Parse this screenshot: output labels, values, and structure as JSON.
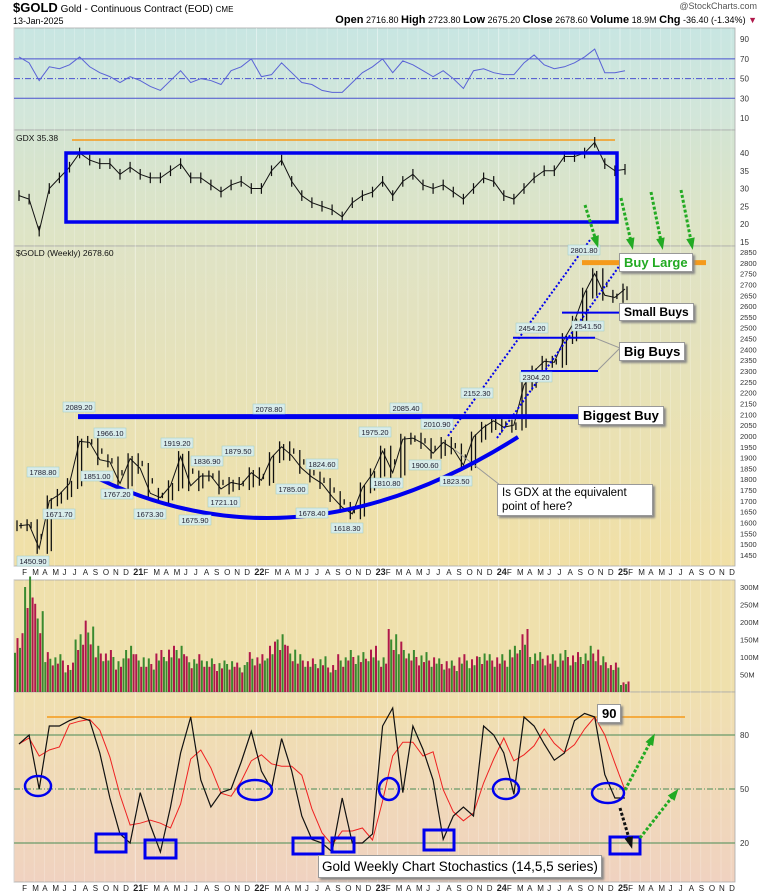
{
  "header": {
    "symbol": "$GOLD",
    "description": "Gold - Continuous Contract (EOD)",
    "exchange": "CME",
    "date": "13-Jan-2025",
    "credit": "@StockCharts.com",
    "open_label": "Open",
    "open": "2716.80",
    "high_label": "High",
    "high": "2723.80",
    "low_label": "Low",
    "low": "2675.20",
    "close_label": "Close",
    "close": "2678.60",
    "volume_label": "Volume",
    "volume": "18.9M",
    "chg_label": "Chg",
    "chg": "-36.40 (-1.34%)",
    "chg_icon": "down-triangle-icon"
  },
  "colors": {
    "up": "#3a8a2e",
    "down": "#b0184a",
    "annotation_blue": "#0000ee",
    "orange": "#f59a1b",
    "arrow_green": "#22aa22",
    "rsi_line": "#5a63d6"
  },
  "chart_data": [
    {
      "type": "line",
      "panel": "RSI",
      "yticks": [
        90,
        70,
        50,
        30,
        10
      ],
      "ylim": [
        0,
        100
      ],
      "levels": [
        70,
        50,
        30
      ],
      "months": [
        "2020-01",
        "2020-02",
        "2020-03",
        "2020-04",
        "2020-05",
        "2020-06",
        "2020-07",
        "2020-08",
        "2020-09",
        "2020-10",
        "2020-11",
        "2020-12",
        "2021-01",
        "2021-02",
        "2021-03",
        "2021-04",
        "2021-05",
        "2021-06",
        "2021-07",
        "2021-08",
        "2021-09",
        "2021-10",
        "2021-11",
        "2021-12",
        "2022-01",
        "2022-02",
        "2022-03",
        "2022-04",
        "2022-05",
        "2022-06",
        "2022-07",
        "2022-08",
        "2022-09",
        "2022-10",
        "2022-11",
        "2022-12",
        "2023-01",
        "2023-02",
        "2023-03",
        "2023-04",
        "2023-05",
        "2023-06",
        "2023-07",
        "2023-08",
        "2023-09",
        "2023-10",
        "2023-11",
        "2023-12",
        "2024-01",
        "2024-02",
        "2024-03",
        "2024-04",
        "2024-05",
        "2024-06",
        "2024-07",
        "2024-08",
        "2024-09",
        "2024-10",
        "2024-11",
        "2024-12",
        "2025-01"
      ],
      "values": [
        72,
        66,
        48,
        62,
        60,
        64,
        72,
        62,
        56,
        52,
        46,
        52,
        48,
        42,
        38,
        48,
        58,
        46,
        50,
        48,
        44,
        58,
        62,
        70,
        52,
        54,
        66,
        56,
        46,
        44,
        38,
        36,
        36,
        46,
        56,
        62,
        70,
        56,
        68,
        64,
        58,
        52,
        58,
        50,
        40,
        58,
        60,
        56,
        54,
        54,
        66,
        74,
        64,
        60,
        62,
        66,
        72,
        80,
        56,
        56,
        58
      ]
    },
    {
      "type": "line",
      "panel": "GDX",
      "label": "GDX 35.38",
      "yticks": [
        40,
        35,
        30,
        25,
        20,
        15
      ],
      "ylim": [
        14,
        45
      ],
      "values": [
        28,
        27,
        18,
        30,
        33,
        36,
        40,
        38,
        37,
        37,
        34,
        36,
        34,
        33,
        33,
        35,
        37,
        33,
        33,
        31,
        29,
        31,
        32,
        30,
        30,
        35,
        38,
        32,
        28,
        26,
        25,
        24,
        22,
        26,
        28,
        29,
        32,
        28,
        32,
        34,
        31,
        30,
        31,
        29,
        27,
        30,
        33,
        32,
        28,
        27,
        30,
        33,
        35,
        35,
        39,
        39,
        40,
        43,
        37,
        35,
        35.4
      ]
    },
    {
      "type": "ohlc",
      "panel": "$GOLD",
      "label": "$GOLD (Weekly) 2678.60",
      "yticks": [
        2850,
        2800,
        2750,
        2700,
        2650,
        2600,
        2550,
        2500,
        2450,
        2400,
        2350,
        2300,
        2250,
        2200,
        2150,
        2100,
        2050,
        2000,
        1950,
        1900,
        1850,
        1800,
        1750,
        1700,
        1650,
        1600,
        1550,
        1500,
        1450
      ],
      "ylim": [
        1420,
        2870
      ],
      "xticks": [
        "J",
        "F",
        "M",
        "A",
        "M",
        "J",
        "J",
        "A",
        "S",
        "O",
        "N",
        "D"
      ],
      "year_ticks": [
        "21",
        "22",
        "23",
        "24",
        "25"
      ],
      "values": [
        1585,
        1590,
        1480,
        1700,
        1730,
        1780,
        1975,
        1970,
        1890,
        1880,
        1780,
        1895,
        1850,
        1735,
        1715,
        1770,
        1905,
        1770,
        1815,
        1815,
        1755,
        1785,
        1775,
        1830,
        1795,
        1900,
        1950,
        1910,
        1850,
        1810,
        1780,
        1720,
        1670,
        1640,
        1760,
        1825,
        1930,
        1830,
        1985,
        1990,
        1965,
        1920,
        1970,
        1940,
        1865,
        1995,
        2040,
        2070,
        2040,
        2050,
        2235,
        2300,
        2345,
        2340,
        2450,
        2530,
        2660,
        2750,
        2650,
        2640,
        2679
      ],
      "point_labels": [
        [
          "2020-03",
          "1450.90"
        ],
        [
          "2020-04",
          "1788.80"
        ],
        [
          "2020-05",
          "1671.70"
        ],
        [
          "2020-07",
          "2089.20"
        ],
        [
          "2020-09",
          "1851.00"
        ],
        [
          "2020-10",
          "1966.10"
        ],
        [
          "2020-11",
          "1767.20"
        ],
        [
          "2021-03",
          "1673.30"
        ],
        [
          "2021-05",
          "1919.20"
        ],
        [
          "2021-08",
          "1675.90"
        ],
        [
          "2021-08",
          "1836.90"
        ],
        [
          "2021-09",
          "1721.10"
        ],
        [
          "2021-11",
          "1879.50"
        ],
        [
          "2022-03",
          "2078.80"
        ],
        [
          "2022-05",
          "1785.00"
        ],
        [
          "2022-07",
          "1678.40"
        ],
        [
          "2022-07",
          "1824.60"
        ],
        [
          "2022-10",
          "1618.30"
        ],
        [
          "2023-01",
          "1975.20"
        ],
        [
          "2023-02",
          "1810.80"
        ],
        [
          "2023-04",
          "2085.40"
        ],
        [
          "2023-06",
          "1900.60"
        ],
        [
          "2023-07",
          "2010.90"
        ],
        [
          "2023-10",
          "1823.50"
        ],
        [
          "2023-12",
          "2152.30"
        ],
        [
          "2024-05",
          "2454.20"
        ],
        [
          "2024-05",
          "2304.20"
        ],
        [
          "2024-10",
          "2801.80"
        ],
        [
          "2024-11",
          "2541.50"
        ]
      ]
    },
    {
      "type": "bar",
      "panel": "Volume",
      "yticks": [
        "300M",
        "250M",
        "200M",
        "150M",
        "100M",
        "50M"
      ],
      "ylim": [
        0,
        310
      ],
      "values": [
        140,
        300,
        210,
        95,
        90,
        70,
        150,
        170,
        110,
        100,
        80,
        120,
        90,
        80,
        100,
        110,
        120,
        85,
        90,
        80,
        75,
        80,
        70,
        95,
        90,
        120,
        150,
        110,
        90,
        80,
        85,
        70,
        90,
        100,
        95,
        110,
        90,
        150,
        120,
        100,
        95,
        90,
        80,
        75,
        90,
        85,
        100,
        90,
        90,
        110,
        150,
        100,
        95,
        90,
        100,
        95,
        100,
        110,
        85,
        70,
        25
      ]
    },
    {
      "type": "line",
      "panel": "Stochastics",
      "title": "Gold Weekly Chart Stochastics (14,5,5 series)",
      "yticks": [
        80,
        50,
        20
      ],
      "ylim": [
        0,
        100
      ],
      "levels": [
        80,
        50,
        20
      ],
      "upper_level_label": "90",
      "values": [
        75,
        80,
        50,
        85,
        85,
        88,
        90,
        88,
        70,
        45,
        25,
        20,
        48,
        30,
        15,
        40,
        70,
        90,
        55,
        40,
        48,
        50,
        65,
        82,
        60,
        50,
        78,
        60,
        35,
        22,
        20,
        15,
        45,
        20,
        20,
        25,
        85,
        95,
        48,
        85,
        72,
        55,
        22,
        35,
        40,
        35,
        85,
        80,
        70,
        47,
        90,
        85,
        75,
        66,
        70,
        88,
        92,
        90,
        58,
        45,
        45
      ]
    }
  ],
  "annotations": {
    "buy_large": "Buy Large",
    "small_buys": "Small Buys",
    "big_buys": "Big Buys",
    "biggest_buy": "Biggest Buy",
    "question": "Is GDX at the equivalent point of here?",
    "stoch_90": "90",
    "stoch_title": "Gold Weekly Chart Stochastics (14,5,5 series)"
  }
}
